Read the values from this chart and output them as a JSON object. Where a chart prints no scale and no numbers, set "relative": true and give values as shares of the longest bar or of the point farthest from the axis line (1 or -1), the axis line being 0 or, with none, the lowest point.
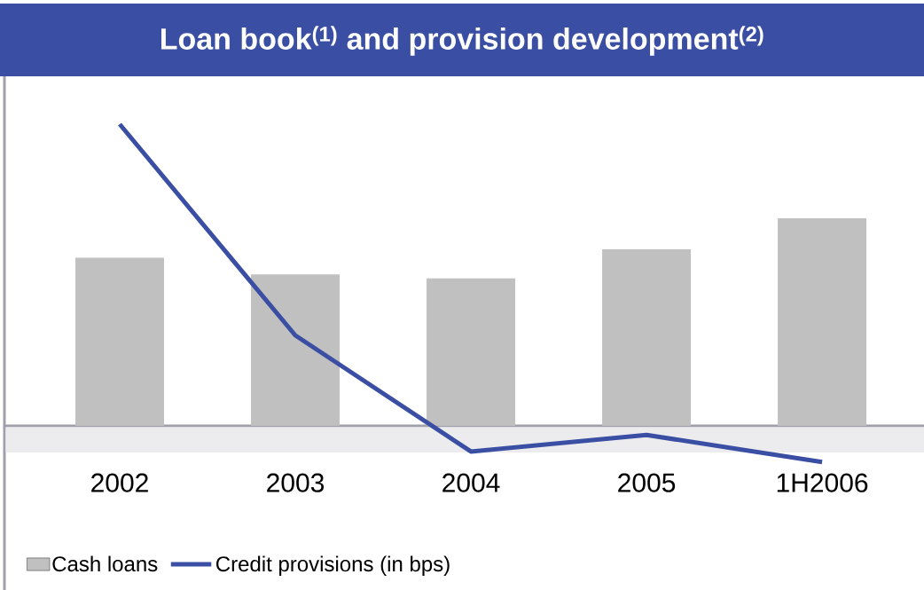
{
  "chart_data": {
    "type": "bar",
    "title": "Loan book$^{(1)}$ and provision development$^{(2)}$",
    "categories": [
      "2002",
      "2003",
      "2004",
      "2005",
      "1H2006"
    ],
    "relative": true,
    "legend": "bottom left",
    "series": [
      {
        "name": "Cash loans",
        "color": "#c0c0c0",
        "values": [
          0.81,
          0.73,
          0.71,
          0.85,
          1
        ]
      },
      {
        "name": "Credit provisions (in bps)",
        "type": "line",
        "axis": "y2",
        "color": "#3a4fa3",
        "values": [
          1,
          0.3,
          -0.085,
          -0.03,
          -0.12
        ]
      }
    ]
  }
}
